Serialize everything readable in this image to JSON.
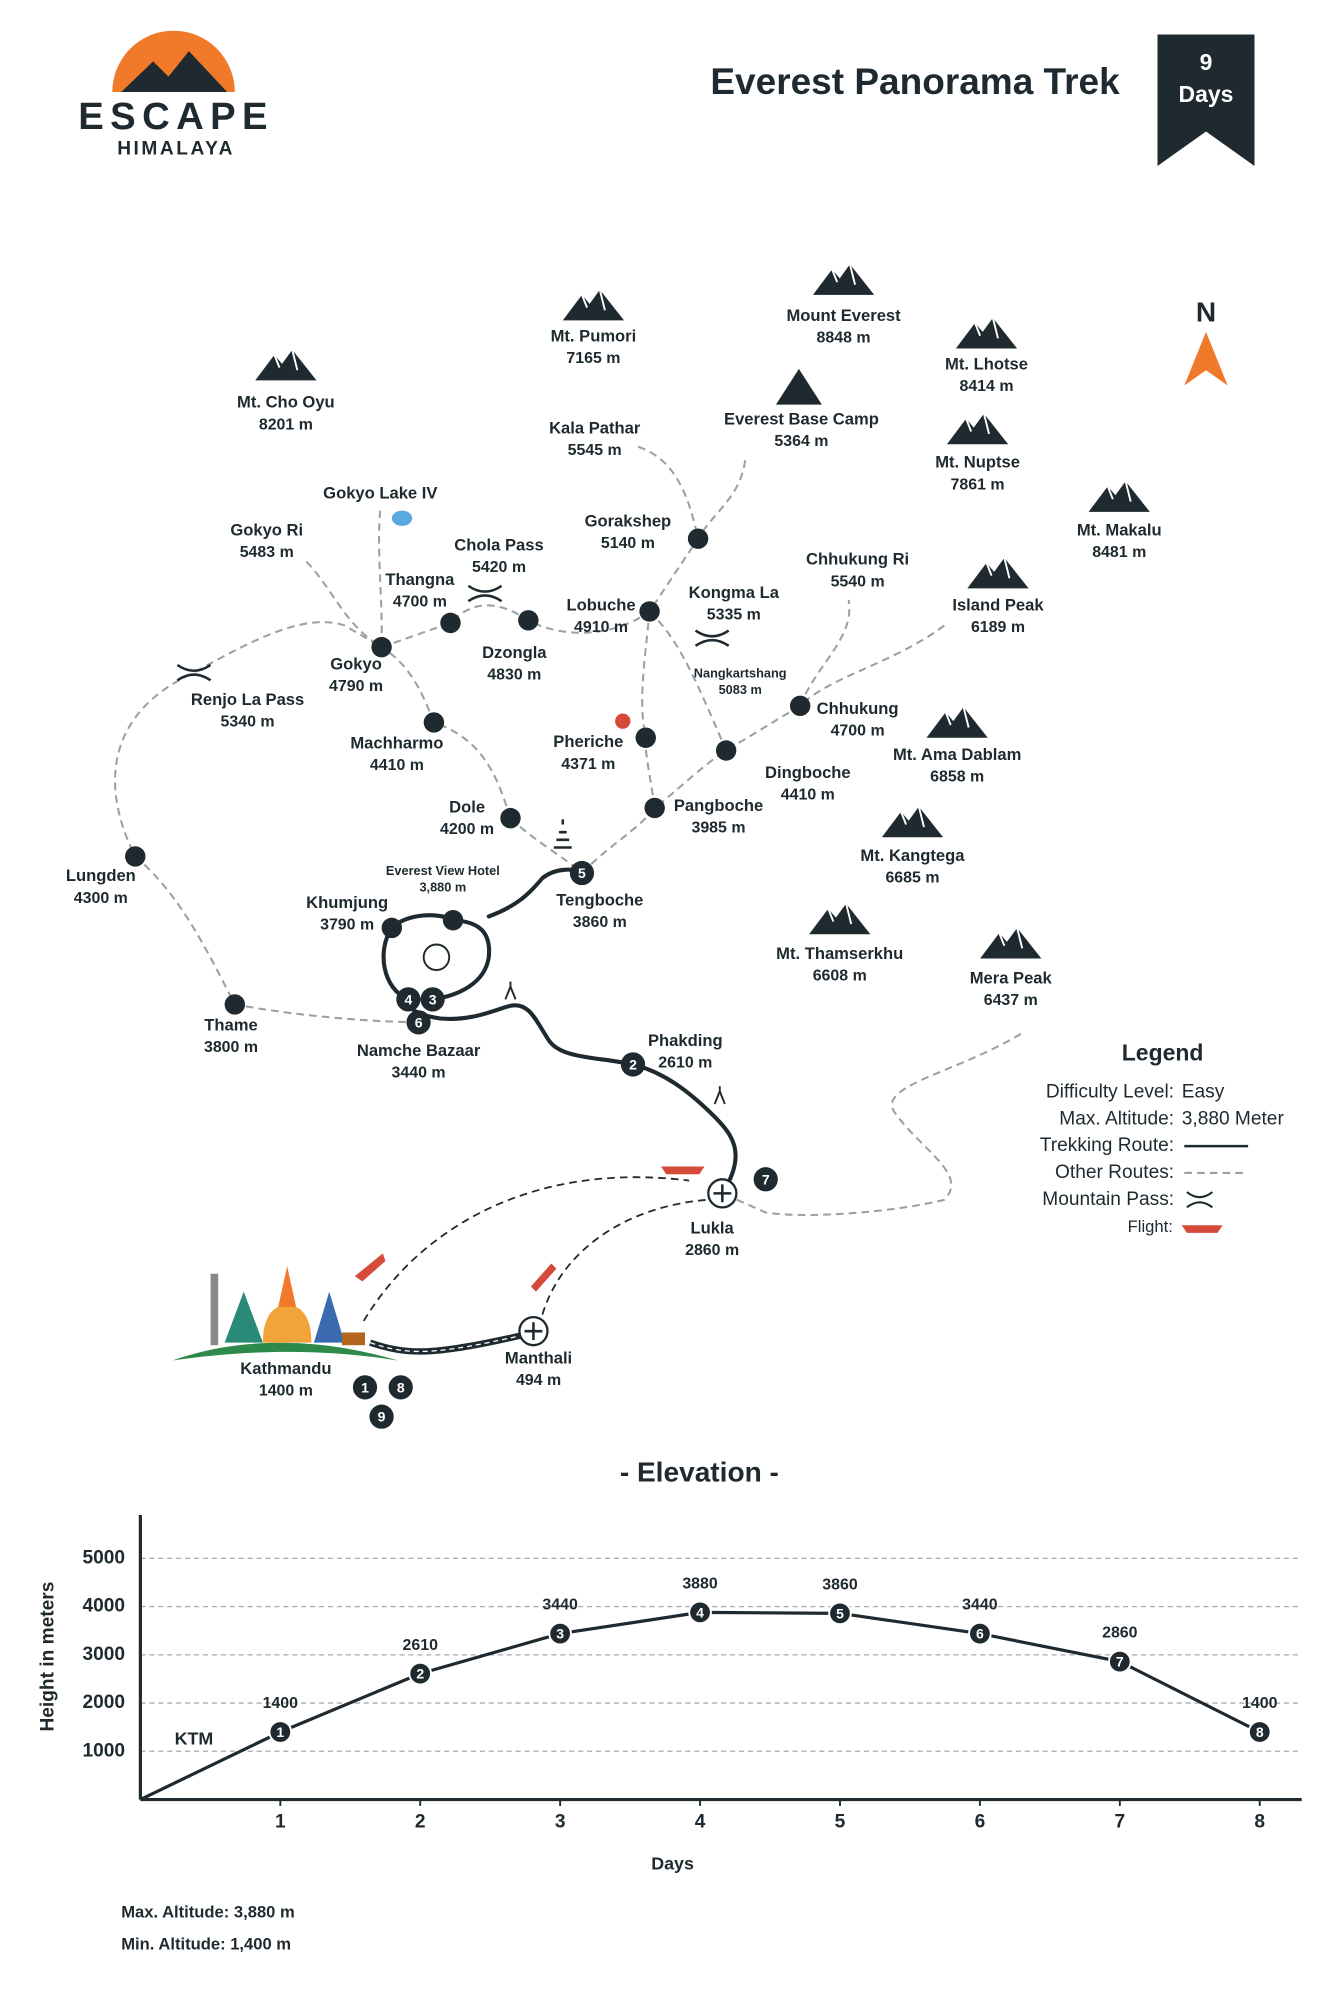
{
  "header": {
    "logo_top": "ESCAPE",
    "logo_bottom": "HIMALAYA",
    "title": "Everest Panorama Trek",
    "badge_number": "9",
    "badge_unit": "Days"
  },
  "compass": "N",
  "map": {
    "places": [
      {
        "name": "Mt. Cho Oyu",
        "altitude": "8201 m"
      },
      {
        "name": "Mt. Pumori",
        "altitude": "7165 m"
      },
      {
        "name": "Mount Everest",
        "altitude": "8848 m"
      },
      {
        "name": "Mt. Lhotse",
        "altitude": "8414 m"
      },
      {
        "name": "Mt. Nuptse",
        "altitude": "7861 m"
      },
      {
        "name": "Mt. Makalu",
        "altitude": "8481 m"
      },
      {
        "name": "Island Peak",
        "altitude": "6189 m"
      },
      {
        "name": "Mt. Ama Dablam",
        "altitude": "6858 m"
      },
      {
        "name": "Mt. Kangtega",
        "altitude": "6685 m"
      },
      {
        "name": "Mt. Thamserkhu",
        "altitude": "6608 m"
      },
      {
        "name": "Mera Peak",
        "altitude": "6437 m"
      },
      {
        "name": "Everest Base Camp",
        "altitude": "5364 m"
      },
      {
        "name": "Kala Pathar",
        "altitude": "5545 m"
      },
      {
        "name": "Gokyo Lake IV"
      },
      {
        "name": "Gokyo Ri",
        "altitude": "5483 m"
      },
      {
        "name": "Gorakshep",
        "altitude": "5140 m"
      },
      {
        "name": "Chola Pass",
        "altitude": "5420 m"
      },
      {
        "name": "Chhukung Ri",
        "altitude": "5540 m"
      },
      {
        "name": "Thangna",
        "altitude": "4700 m"
      },
      {
        "name": "Lobuche",
        "altitude": "4910 m"
      },
      {
        "name": "Kongma La",
        "altitude": "5335 m"
      },
      {
        "name": "Dzongla",
        "altitude": "4830 m"
      },
      {
        "name": "Gokyo",
        "altitude": "4790 m"
      },
      {
        "name": "Renjo La Pass",
        "altitude": "5340 m"
      },
      {
        "name": "Nangkartshang",
        "altitude": "5083 m"
      },
      {
        "name": "Chhukung",
        "altitude": "4700 m"
      },
      {
        "name": "Machharmo",
        "altitude": "4410 m"
      },
      {
        "name": "Pheriche",
        "altitude": "4371 m"
      },
      {
        "name": "Dingboche",
        "altitude": "4410 m"
      },
      {
        "name": "Pangboche",
        "altitude": "3985 m"
      },
      {
        "name": "Dole",
        "altitude": "4200 m"
      },
      {
        "name": "Lungden",
        "altitude": "4300 m"
      },
      {
        "name": "Everest View Hotel",
        "altitude": "3,880 m"
      },
      {
        "name": "Khumjung",
        "altitude": "3790 m"
      },
      {
        "name": "Tengboche",
        "altitude": "3860 m",
        "days": [
          5
        ]
      },
      {
        "name": "Thame",
        "altitude": "3800 m"
      },
      {
        "name": "Namche Bazaar",
        "altitude": "3440 m",
        "days": [
          4,
          3,
          6
        ]
      },
      {
        "name": "Phakding",
        "altitude": "2610 m",
        "days": [
          2
        ]
      },
      {
        "name": "Lukla",
        "altitude": "2860 m",
        "days": [
          7
        ]
      },
      {
        "name": "Kathmandu",
        "altitude": "1400 m",
        "days": [
          1,
          8,
          9
        ]
      },
      {
        "name": "Manthali",
        "altitude": "494 m"
      }
    ]
  },
  "legend": {
    "title": "Legend",
    "items": [
      {
        "label": "Difficulty Level:",
        "value": "Easy"
      },
      {
        "label": "Max. Altitude:",
        "value": "3,880 Meter"
      },
      {
        "label": "Trekking Route:"
      },
      {
        "label": "Other Routes:"
      },
      {
        "label": "Mountain Pass:"
      },
      {
        "label": "Flight:"
      }
    ]
  },
  "chart_data": {
    "type": "line",
    "title": "- Elevation -",
    "x_label": "Days",
    "y_label": "Height in meters",
    "annotation": "KTM",
    "x": [
      1,
      2,
      3,
      4,
      5,
      6,
      7,
      8
    ],
    "series": [
      {
        "name": "Elevation",
        "color": "#1e2a2f",
        "values": [
          1400,
          2610,
          3440,
          3880,
          3860,
          3440,
          2860,
          1400
        ]
      }
    ],
    "xlim": [
      0,
      8.3
    ],
    "xticks": [
      1,
      2,
      3,
      4,
      5,
      6,
      7,
      8
    ],
    "ylim": [
      0,
      5900
    ],
    "yticks": [
      1000,
      2000,
      3000,
      4000,
      5000
    ],
    "grid": true
  },
  "footer": {
    "max_altitude": "Max. Altitude: 3,880 m",
    "min_altitude": "Min. Altitude: 1,400 m"
  }
}
